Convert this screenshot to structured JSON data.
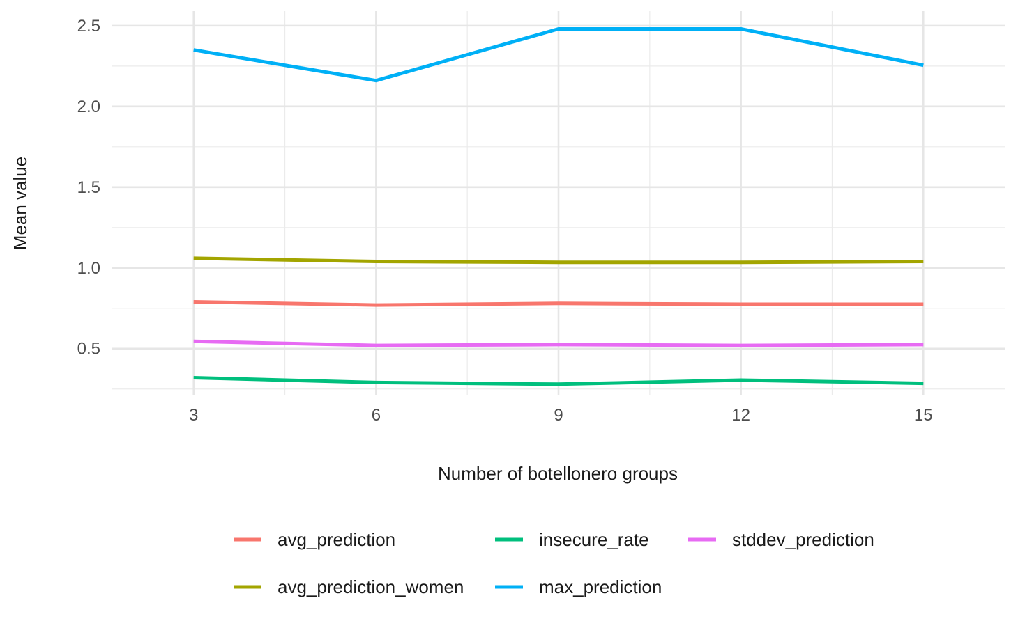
{
  "chart_data": {
    "type": "line",
    "title": "",
    "xlabel": "Number of botellonero groups",
    "ylabel": "Mean value",
    "x": [
      3,
      6,
      9,
      12,
      15
    ],
    "xticks": [
      3,
      6,
      9,
      12,
      15
    ],
    "xtick_labels": [
      "3",
      "6",
      "9",
      "12",
      "15"
    ],
    "yticks": [
      0.5,
      1.0,
      1.5,
      2.0,
      2.5
    ],
    "ytick_labels": [
      "0.5",
      "1.0",
      "1.5",
      "2.0",
      "2.5"
    ],
    "xlim": [
      1.65,
      16.35
    ],
    "ylim": [
      0.21,
      2.59
    ],
    "grid": true,
    "legend_position": "bottom",
    "series": [
      {
        "name": "avg_prediction",
        "color": "#F8766D",
        "values": [
          0.79,
          0.77,
          0.78,
          0.775,
          0.775
        ]
      },
      {
        "name": "avg_prediction_women",
        "color": "#A3A500",
        "values": [
          1.06,
          1.04,
          1.035,
          1.035,
          1.04
        ]
      },
      {
        "name": "insecure_rate",
        "color": "#00BF7D",
        "values": [
          0.32,
          0.29,
          0.28,
          0.305,
          0.285
        ]
      },
      {
        "name": "max_prediction",
        "color": "#00B0F6",
        "values": [
          2.35,
          2.16,
          2.48,
          2.48,
          2.255
        ]
      },
      {
        "name": "stddev_prediction",
        "color": "#E76BF3",
        "values": [
          0.545,
          0.52,
          0.525,
          0.52,
          0.525
        ]
      }
    ]
  }
}
